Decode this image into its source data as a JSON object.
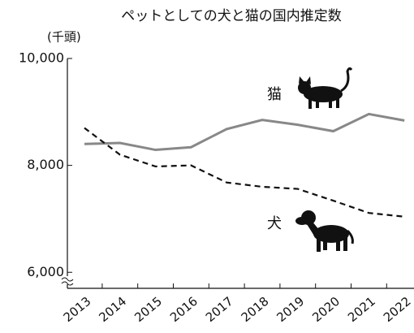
{
  "chart_data": {
    "type": "line",
    "title": "ペットとしての犬と猫の国内推定数",
    "y_label": "(千頭)",
    "categories": [
      "2013",
      "2014",
      "2015",
      "2016",
      "2017",
      "2018",
      "2019",
      "2020",
      "2021",
      "2022"
    ],
    "series": [
      {
        "name": "猫",
        "color": "#888888",
        "dash": false,
        "values": [
          8400,
          8420,
          8290,
          8340,
          8680,
          8850,
          8760,
          8640,
          8960,
          8840
        ]
      },
      {
        "name": "犬",
        "color": "#111111",
        "dash": true,
        "values": [
          8700,
          8200,
          7980,
          8000,
          7680,
          7600,
          7560,
          7340,
          7110,
          7040
        ]
      }
    ],
    "ylim": [
      5700,
      10000
    ],
    "yticks": [
      {
        "value": 6000,
        "label": "6,000"
      },
      {
        "value": 8000,
        "label": "8,000"
      },
      {
        "value": 10000,
        "label": "10,000"
      }
    ]
  }
}
